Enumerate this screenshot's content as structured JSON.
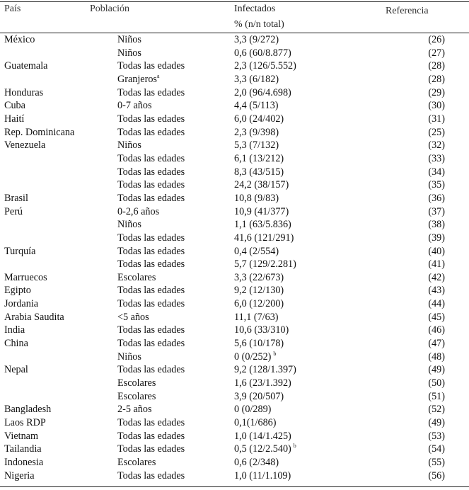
{
  "header": {
    "country": "País",
    "population": "Población",
    "infected_line1": "Infectados",
    "infected_line2": "% (n/n total)",
    "reference": "Referencia"
  },
  "rows": [
    {
      "country": "México",
      "population": "Niños",
      "population_sup": "",
      "infected": "3,3 (9/272)",
      "infected_sup": "",
      "reference": "(26)"
    },
    {
      "country": "",
      "population": "Niños",
      "population_sup": "",
      "infected": "0,6 (60/8.877)",
      "infected_sup": "",
      "reference": "(27)"
    },
    {
      "country": "Guatemala",
      "population": "Todas las edades",
      "population_sup": "",
      "infected": "2,3 (126/5.552)",
      "infected_sup": "",
      "reference": "(28)"
    },
    {
      "country": "",
      "population": "Granjeros",
      "population_sup": "a",
      "infected": "3,3 (6/182)",
      "infected_sup": "",
      "reference": "(28)"
    },
    {
      "country": "Honduras",
      "population": "Todas las edades",
      "population_sup": "",
      "infected": "2,0 (96/4.698)",
      "infected_sup": "",
      "reference": "(29)"
    },
    {
      "country": "Cuba",
      "population": "0-7 años",
      "population_sup": "",
      "infected": "4,4 (5/113)",
      "infected_sup": "",
      "reference": "(30)"
    },
    {
      "country": "Haití",
      "population": "Todas las edades",
      "population_sup": "",
      "infected": "6,0 (24/402)",
      "infected_sup": "",
      "reference": "(31)"
    },
    {
      "country": "Rep. Dominicana",
      "population": "Todas las edades",
      "population_sup": "",
      "infected": "2,3 (9/398)",
      "infected_sup": "",
      "reference": "(25)"
    },
    {
      "country": "Venezuela",
      "population": "Niños",
      "population_sup": "",
      "infected": "5,3 (7/132)",
      "infected_sup": "",
      "reference": "(32)"
    },
    {
      "country": "",
      "population": "Todas las edades",
      "population_sup": "",
      "infected": "6,1 (13/212)",
      "infected_sup": "",
      "reference": "(33)"
    },
    {
      "country": "",
      "population": "Todas las edades",
      "population_sup": "",
      "infected": "8,3 (43/515)",
      "infected_sup": "",
      "reference": "(34)"
    },
    {
      "country": "",
      "population": "Todas las edades",
      "population_sup": "",
      "infected": "24,2 (38/157)",
      "infected_sup": "",
      "reference": "(35)"
    },
    {
      "country": "Brasil",
      "population": "Todas las edades",
      "population_sup": "",
      "infected": "10,8 (9/83)",
      "infected_sup": "",
      "reference": "(36)"
    },
    {
      "country": "Perú",
      "population": "0-2,6 años",
      "population_sup": "",
      "infected": "10,9 (41/377)",
      "infected_sup": "",
      "reference": "(37)"
    },
    {
      "country": "",
      "population": "Niños",
      "population_sup": "",
      "infected": "1,1 (63/5.836)",
      "infected_sup": "",
      "reference": "(38)"
    },
    {
      "country": "",
      "population": "Todas las edades",
      "population_sup": "",
      "infected": "41,6 (121/291)",
      "infected_sup": "",
      "reference": "(39)"
    },
    {
      "country": "Turquía",
      "population": "Todas las edades",
      "population_sup": "",
      "infected": "0,4 (2/554)",
      "infected_sup": "",
      "reference": "(40)"
    },
    {
      "country": "",
      "population": "Todas las edades",
      "population_sup": "",
      "infected": "5,7 (129/2.281)",
      "infected_sup": "",
      "reference": "(41)"
    },
    {
      "country": "Marruecos",
      "population": "Escolares",
      "population_sup": "",
      "infected": "3,3 (22/673)",
      "infected_sup": "",
      "reference": "(42)"
    },
    {
      "country": "Egipto",
      "population": "Todas las edades",
      "population_sup": "",
      "infected": "9,2 (12/130)",
      "infected_sup": "",
      "reference": "(43)"
    },
    {
      "country": "Jordania",
      "population": "Todas las edades",
      "population_sup": "",
      "infected": "6,0 (12/200)",
      "infected_sup": "",
      "reference": "(44)"
    },
    {
      "country": "Arabia Saudita",
      "population": "<5 años",
      "population_sup": "",
      "infected": "11,1 (7/63)",
      "infected_sup": "",
      "reference": "(45)"
    },
    {
      "country": "India",
      "population": "Todas las edades",
      "population_sup": "",
      "infected": "10,6 (33/310)",
      "infected_sup": "",
      "reference": "(46)"
    },
    {
      "country": "China",
      "population": "Todas las edades",
      "population_sup": "",
      "infected": "5,6 (10/178)",
      "infected_sup": "",
      "reference": "(47)"
    },
    {
      "country": "",
      "population": "Niños",
      "population_sup": "",
      "infected": "0 (0/252)",
      "infected_sup": "b",
      "reference": "(48)"
    },
    {
      "country": "Nepal",
      "population": "Todas las edades",
      "population_sup": "",
      "infected": "9,2 (128/1.397)",
      "infected_sup": "",
      "reference": "(49)"
    },
    {
      "country": "",
      "population": "Escolares",
      "population_sup": "",
      "infected": "1,6 (23/1.392)",
      "infected_sup": "",
      "reference": "(50)"
    },
    {
      "country": "",
      "population": "Escolares",
      "population_sup": "",
      "infected": "3,9 (20/507)",
      "infected_sup": "",
      "reference": "(51)"
    },
    {
      "country": "Bangladesh",
      "population": "2-5 años",
      "population_sup": "",
      "infected": "0 (0/289)",
      "infected_sup": "",
      "reference": "(52)"
    },
    {
      "country": "Laos RDP",
      "population": "Todas las edades",
      "population_sup": "",
      "infected": "0,1(1/686)",
      "infected_sup": "",
      "reference": "(49)"
    },
    {
      "country": "Vietnam",
      "population": "Todas las edades",
      "population_sup": "",
      "infected": "1,0 (14/1.425)",
      "infected_sup": "",
      "reference": "(53)"
    },
    {
      "country": "Tailandia",
      "population": "Todas las edades",
      "population_sup": "",
      "infected": "0,5 (12/2.540)",
      "infected_sup": "b",
      "reference": "(54)"
    },
    {
      "country": "Indonesia",
      "population": "Escolares",
      "population_sup": "",
      "infected": "0,6 (2/348)",
      "infected_sup": "",
      "reference": "(55)"
    },
    {
      "country": "Nigeria",
      "population": "Todas las edades",
      "population_sup": "",
      "infected": "1,0 (11/1.109)",
      "infected_sup": "",
      "reference": "(56)"
    }
  ]
}
